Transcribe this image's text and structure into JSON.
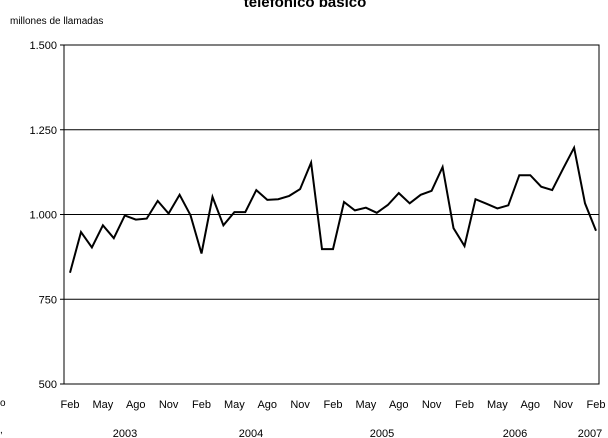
{
  "chart_data": {
    "type": "line",
    "title": "telefónico básico",
    "ylabel": "millones de llamadas",
    "xlabel": "",
    "ylim": [
      500,
      1500
    ],
    "yticks": [
      500,
      750,
      1000,
      1250,
      1500
    ],
    "ytick_labels": [
      "500",
      "750",
      "1.000",
      "1.250",
      "1.500"
    ],
    "grid": "horizontal",
    "legend": "none",
    "line_color": "#000000",
    "month_labels": [
      "Feb",
      "May",
      "Ago",
      "Nov",
      "Feb",
      "May",
      "Ago",
      "Nov",
      "Feb",
      "May",
      "Ago",
      "Nov",
      "Feb",
      "May",
      "Ago",
      "Nov",
      "Feb"
    ],
    "year_labels": [
      "2003",
      "2004",
      "2005",
      "2006",
      "2007"
    ],
    "edge_fragments": [
      "o",
      ","
    ],
    "series": [
      {
        "values": [
          828,
          948,
          903,
          968,
          930,
          997,
          985,
          988,
          1040,
          1003,
          1058,
          998,
          885,
          1052,
          968,
          1007,
          1007,
          1072,
          1043,
          1045,
          1055,
          1075,
          1153,
          898,
          898,
          1037,
          1012,
          1020,
          1005,
          1028,
          1063,
          1033,
          1058,
          1070,
          1140,
          960,
          907,
          1045,
          1032,
          1018,
          1027,
          1116,
          1116,
          1082,
          1072,
          1135,
          1197,
          1033,
          952
        ]
      }
    ]
  }
}
